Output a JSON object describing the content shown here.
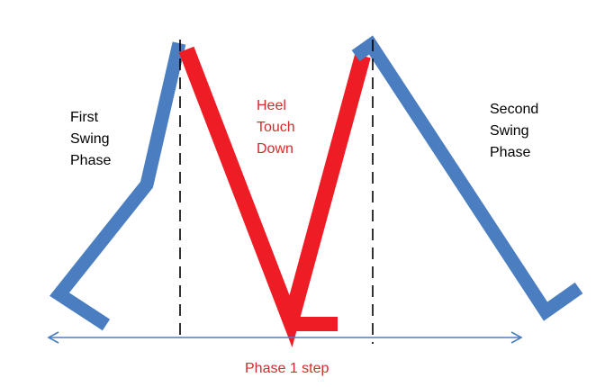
{
  "labels": {
    "first_swing": [
      "First",
      "Swing",
      "Phase"
    ],
    "heel_touch": [
      "Heel",
      "Touch",
      "Down"
    ],
    "second_swing": [
      "Second",
      "Swing",
      "Phase"
    ],
    "phase_step": "Phase 1 step"
  },
  "colors": {
    "swing_leg": "#4a7ec0",
    "stance_leg": "#ee1c24",
    "axis": "#4a7ec0",
    "marker": "#000000",
    "label_black": "#000000",
    "label_red": "#d42b2b"
  }
}
